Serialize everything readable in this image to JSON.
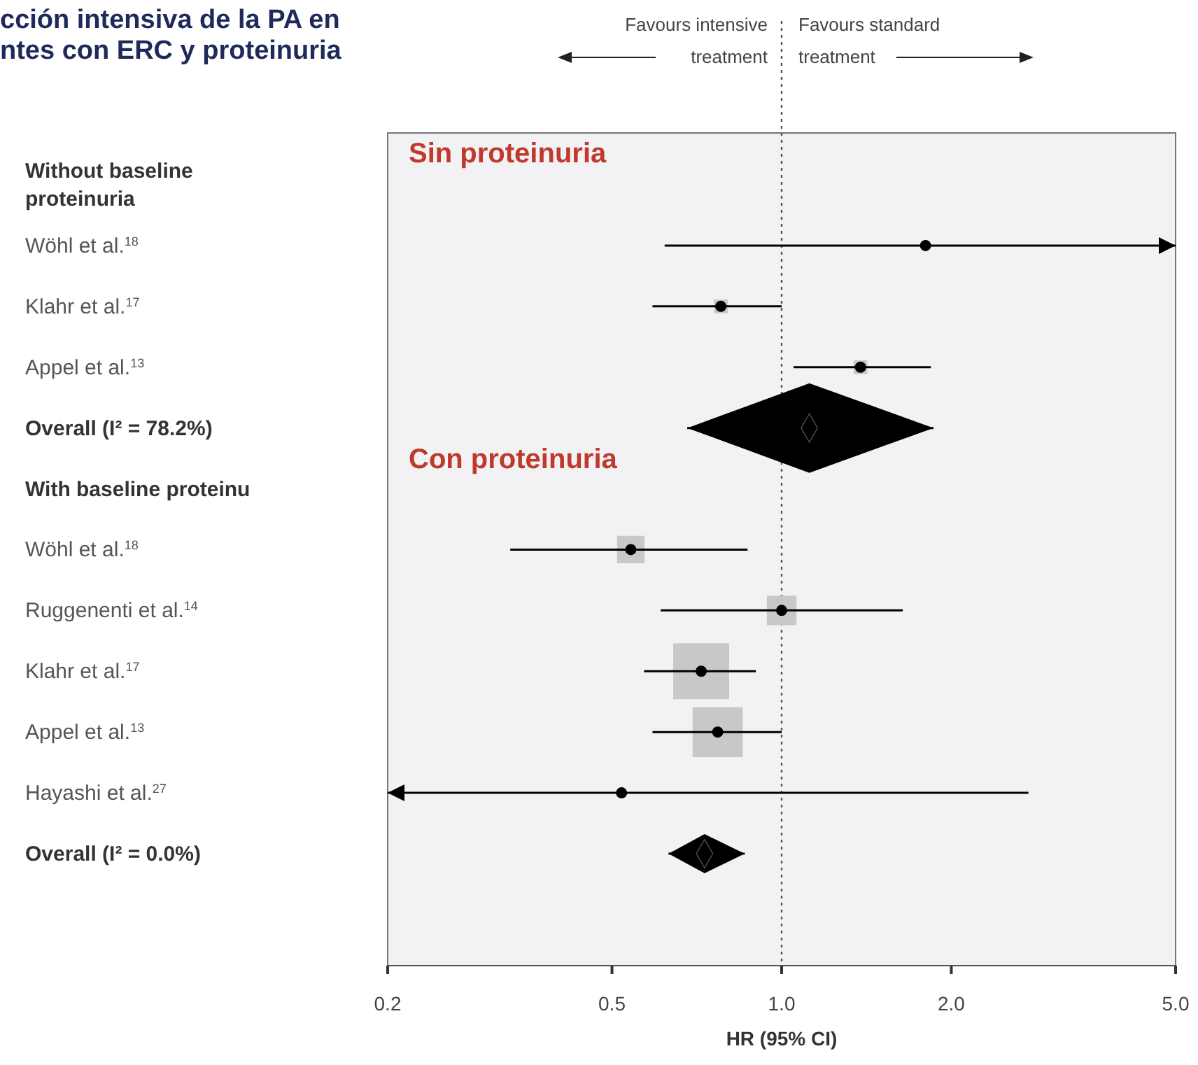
{
  "chart_data": {
    "type": "scatter",
    "orientation": "horizontal",
    "title": "cción intensiva de la PA en\nntes con ERC y proteinuria",
    "xlabel": "HR (95% CI)",
    "categories": [
      "Without baseline proteinuria",
      "Wöhl et al.$^{18}$",
      "Klahr et al.$^{17}$",
      "Appel et al.$^{13}$",
      "Overall (I² = 78.2%)",
      "With baseline proteinu",
      "Wöhl et al.$^{18}$",
      "Ruggenenti et al.$^{14}$",
      "Klahr et al.$^{17}$",
      "Appel et al.$^{13}$",
      "Hayashi et al.$^{27}$",
      "Overall (I² = 0.0%)"
    ],
    "series": [
      {
        "type": "bubble",
        "marker": "square",
        "color": "#c8c8c8",
        "values": [
          null,
          null,
          0.78,
          1.38,
          null,
          null,
          0.54,
          1.0,
          0.72,
          0.77,
          null,
          null
        ],
        "sizes": [
          null,
          null,
          0.06,
          0.06,
          null,
          null,
          0.24,
          0.28,
          1,
          0.8,
          null,
          null
        ]
      },
      {
        "marker": "circle",
        "color": "#000000",
        "values": [
          null,
          1.8,
          0.78,
          1.38,
          null,
          null,
          0.54,
          1.0,
          0.72,
          0.77,
          0.52,
          null
        ],
        "errors": [
          null,
          [
            0.62,
            5.0
          ],
          [
            0.59,
            1.0
          ],
          [
            1.05,
            1.84
          ],
          null,
          null,
          [
            0.33,
            0.87
          ],
          [
            0.61,
            1.64
          ],
          [
            0.57,
            0.9
          ],
          [
            0.59,
            1.0
          ],
          [
            0.2,
            2.74
          ],
          null
        ]
      },
      {
        "marker": "diamond",
        "color": "#000000",
        "values": [
          null,
          null,
          null,
          null,
          1.12,
          null,
          null,
          null,
          null,
          null,
          null,
          0.73
        ],
        "errors": [
          null,
          null,
          null,
          null,
          [
            0.68,
            1.86
          ],
          null,
          null,
          null,
          null,
          null,
          null,
          [
            0.63,
            0.86
          ]
        ]
      }
    ],
    "xlim": [
      0.2,
      5.0
    ],
    "log": "x",
    "xticks": [
      0.2,
      0.5,
      {
        "value": 1,
        "label": "1.0"
      },
      {
        "value": 2,
        "label": "2.0"
      },
      {
        "value": 5,
        "label": "5.0"
      }
    ],
    "ref_lines": [
      {
        "axis": "x",
        "value": 1,
        "line_style": "dotted",
        "color": "#555555"
      }
    ],
    "annotations": [
      "Sin proteinuria",
      "Con proteinuria",
      "Favours intensive treatment",
      "Favours standard treatment"
    ]
  }
}
